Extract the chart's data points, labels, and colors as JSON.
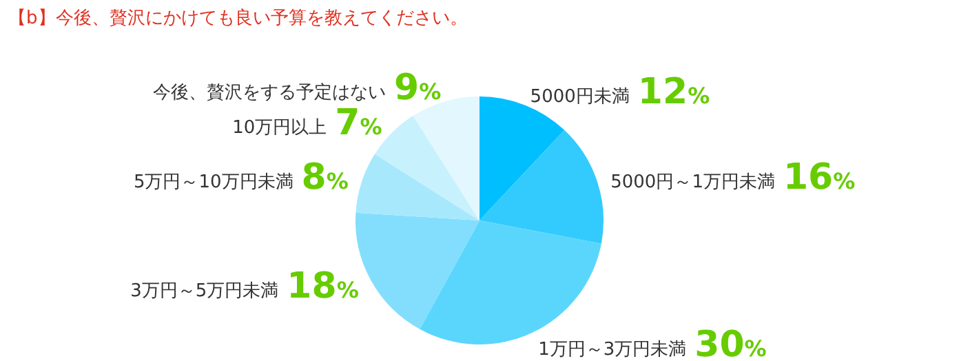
{
  "chart_data": {
    "type": "pie",
    "title": "【b】今後、贅沢にかけても良い予算を教えてください。",
    "categories": [
      "5000円未満",
      "5000円～1万円未満",
      "1万円～3万円未満",
      "3万円～5万円未満",
      "5万円～10万円未満",
      "10万円以上",
      "今後、贅沢をする予定はない"
    ],
    "values": [
      12,
      16,
      30,
      18,
      8,
      7,
      9
    ],
    "value_labels": [
      "12%",
      "16%",
      "30%",
      "18%",
      "8%",
      "7%",
      "9%"
    ],
    "colors": [
      "#00bfff",
      "#33cbfd",
      "#5ad6fd",
      "#82defc",
      "#a8e8fd",
      "#c8f1fe",
      "#e2f8fe"
    ],
    "legend": false
  }
}
